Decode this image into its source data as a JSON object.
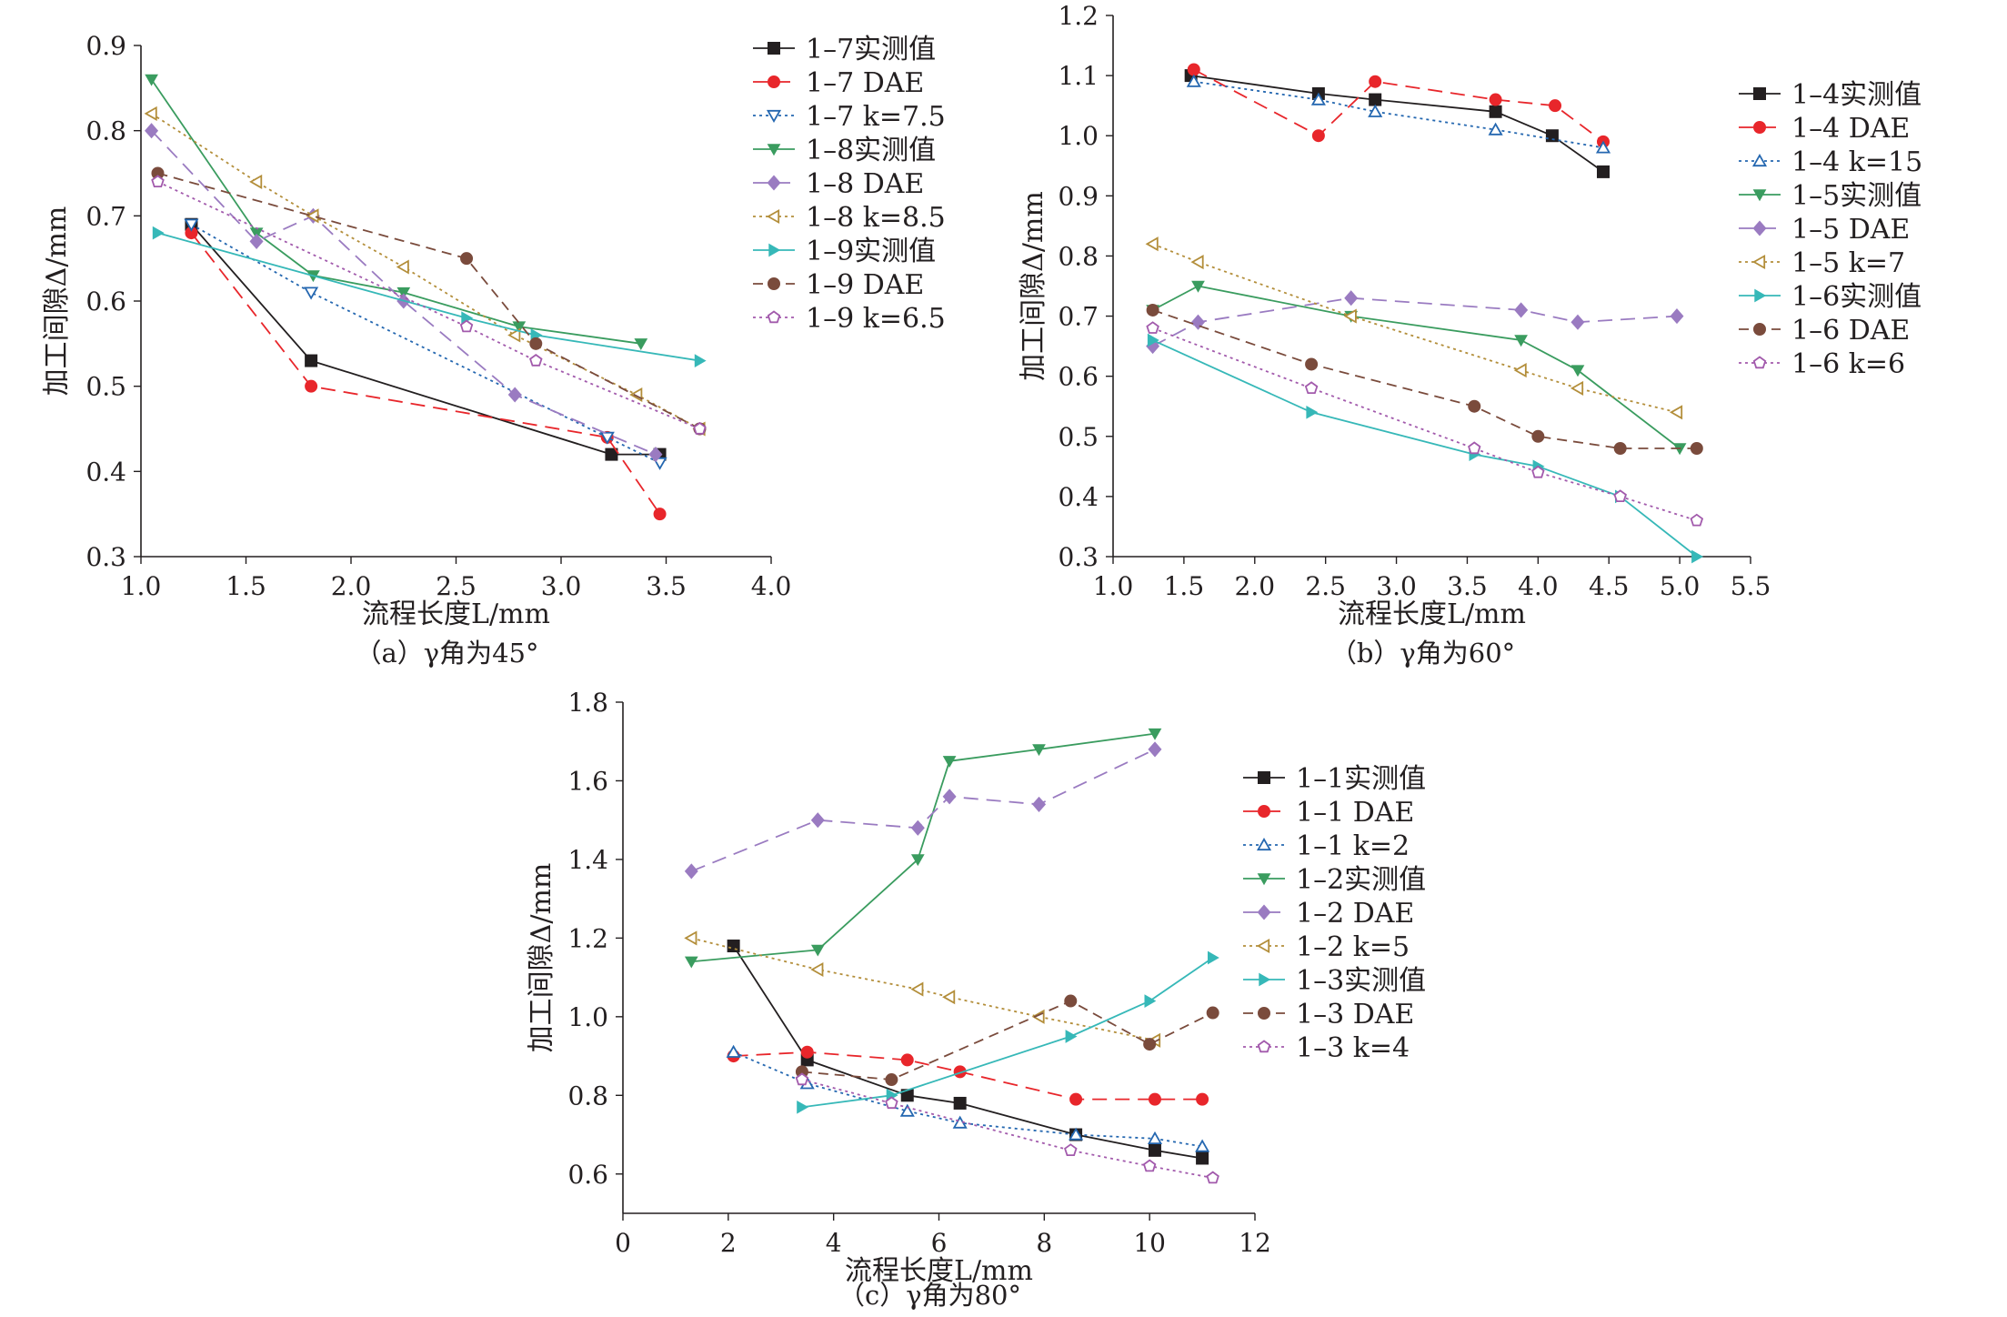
{
  "chart_data": [
    {
      "type": "line",
      "caption": "（a）γ角为45°",
      "xlabel": "流程长度L/mm",
      "ylabel": "加工间隙Δ/mm",
      "xlim": [
        1.0,
        4.0
      ],
      "ylim": [
        0.3,
        0.9
      ],
      "xticks": [
        "1.0",
        "1.5",
        "2.0",
        "2.5",
        "3.0",
        "3.5",
        "4.0"
      ],
      "yticks": [
        "0.3",
        "0.4",
        "0.5",
        "0.6",
        "0.7",
        "0.8",
        "0.9"
      ],
      "grid": false,
      "legend_position": "right",
      "series": [
        {
          "name": "1–7实测值",
          "color": "#231f20",
          "marker": "square",
          "dash": "solid",
          "x": [
            1.24,
            1.81,
            3.24,
            3.47
          ],
          "y": [
            0.69,
            0.53,
            0.42,
            0.42
          ]
        },
        {
          "name": "1–7 DAE",
          "color": "#e8262b",
          "marker": "circle",
          "dash": "long",
          "x": [
            1.24,
            1.81,
            3.22,
            3.47
          ],
          "y": [
            0.68,
            0.5,
            0.44,
            0.35
          ]
        },
        {
          "name": "1–7 k=7.5",
          "color": "#2467b0",
          "marker": "triangle-down-open",
          "dash": "dot",
          "x": [
            1.24,
            1.81,
            3.22,
            3.47
          ],
          "y": [
            0.69,
            0.61,
            0.44,
            0.41
          ]
        },
        {
          "name": "1–8实测值",
          "color": "#3a9c5f",
          "marker": "triangle-down",
          "dash": "solid",
          "x": [
            1.05,
            1.55,
            1.82,
            2.25,
            2.8,
            3.38
          ],
          "y": [
            0.86,
            0.68,
            0.63,
            0.61,
            0.57,
            0.55
          ]
        },
        {
          "name": "1–8 DAE",
          "color": "#9a7bc1",
          "marker": "diamond",
          "dash": "long",
          "x": [
            1.05,
            1.55,
            1.82,
            2.25,
            2.78,
            3.45
          ],
          "y": [
            0.8,
            0.67,
            0.7,
            0.6,
            0.49,
            0.42
          ]
        },
        {
          "name": "1–8 k=8.5",
          "color": "#b38e3a",
          "marker": "triangle-left-open",
          "dash": "dot",
          "x": [
            1.05,
            1.55,
            1.82,
            2.25,
            2.78,
            3.36,
            3.66
          ],
          "y": [
            0.82,
            0.74,
            0.7,
            0.64,
            0.56,
            0.49,
            0.45
          ]
        },
        {
          "name": "1–9实测值",
          "color": "#36b8b8",
          "marker": "triangle-right",
          "dash": "solid",
          "x": [
            1.08,
            2.55,
            2.88,
            3.66
          ],
          "y": [
            0.68,
            0.58,
            0.56,
            0.53
          ]
        },
        {
          "name": "1–9 DAE",
          "color": "#7a4b3c",
          "marker": "circle",
          "dash": "dash",
          "x": [
            1.08,
            2.55,
            2.88,
            3.66
          ],
          "y": [
            0.75,
            0.65,
            0.55,
            0.45
          ]
        },
        {
          "name": "1–9 k=6.5",
          "color": "#a25aac",
          "marker": "pentagon-open",
          "dash": "dot",
          "x": [
            1.08,
            2.55,
            2.88,
            3.66
          ],
          "y": [
            0.74,
            0.57,
            0.53,
            0.45
          ]
        }
      ]
    },
    {
      "type": "line",
      "caption": "（b）γ角为60°",
      "xlabel": "流程长度L/mm",
      "ylabel": "加工间隙Δ/mm",
      "xlim": [
        1.0,
        5.5
      ],
      "ylim": [
        0.3,
        1.2
      ],
      "xticks": [
        "1.0",
        "1.5",
        "2.0",
        "2.5",
        "3.0",
        "3.5",
        "4.0",
        "4.5",
        "5.0",
        "5.5"
      ],
      "yticks": [
        "0.3",
        "0.4",
        "0.5",
        "0.6",
        "0.7",
        "0.8",
        "0.9",
        "1.0",
        "1.1",
        "1.2"
      ],
      "grid": false,
      "legend_position": "right",
      "series": [
        {
          "name": "1–4实测值",
          "color": "#231f20",
          "marker": "square",
          "dash": "solid",
          "x": [
            1.55,
            2.45,
            2.85,
            3.7,
            4.1,
            4.46
          ],
          "y": [
            1.1,
            1.07,
            1.06,
            1.04,
            1.0,
            0.94
          ]
        },
        {
          "name": "1–4 DAE",
          "color": "#e8262b",
          "marker": "circle",
          "dash": "long",
          "x": [
            1.57,
            2.45,
            2.85,
            3.7,
            4.12,
            4.46
          ],
          "y": [
            1.11,
            1.0,
            1.09,
            1.06,
            1.05,
            0.99
          ]
        },
        {
          "name": "1–4 k=15",
          "color": "#2467b0",
          "marker": "triangle-up-open",
          "dash": "dot",
          "x": [
            1.57,
            2.45,
            2.85,
            3.7,
            4.46
          ],
          "y": [
            1.09,
            1.06,
            1.04,
            1.01,
            0.98
          ]
        },
        {
          "name": "1–5实测值",
          "color": "#3a9c5f",
          "marker": "triangle-down",
          "dash": "solid",
          "x": [
            1.28,
            1.6,
            2.68,
            3.88,
            4.28,
            5.0
          ],
          "y": [
            0.71,
            0.75,
            0.7,
            0.66,
            0.61,
            0.48
          ]
        },
        {
          "name": "1–5 DAE",
          "color": "#9a7bc1",
          "marker": "diamond",
          "dash": "long",
          "x": [
            1.28,
            1.6,
            2.68,
            3.88,
            4.28,
            4.98
          ],
          "y": [
            0.65,
            0.69,
            0.73,
            0.71,
            0.69,
            0.7
          ]
        },
        {
          "name": "1–5 k=7",
          "color": "#b38e3a",
          "marker": "triangle-left-open",
          "dash": "dot",
          "x": [
            1.28,
            1.6,
            2.68,
            3.88,
            4.28,
            4.98
          ],
          "y": [
            0.82,
            0.79,
            0.7,
            0.61,
            0.58,
            0.54
          ]
        },
        {
          "name": "1–6实测值",
          "color": "#36b8b8",
          "marker": "triangle-right",
          "dash": "solid",
          "x": [
            1.28,
            2.4,
            3.55,
            4.0,
            4.58,
            5.12
          ],
          "y": [
            0.66,
            0.54,
            0.47,
            0.45,
            0.4,
            0.3
          ]
        },
        {
          "name": "1–6 DAE",
          "color": "#7a4b3c",
          "marker": "circle",
          "dash": "dash",
          "x": [
            1.28,
            2.4,
            3.55,
            4.0,
            4.58,
            5.12
          ],
          "y": [
            0.71,
            0.62,
            0.55,
            0.5,
            0.48,
            0.48
          ]
        },
        {
          "name": "1–6 k=6",
          "color": "#a25aac",
          "marker": "pentagon-open",
          "dash": "dot",
          "x": [
            1.28,
            2.4,
            3.55,
            4.0,
            4.58,
            5.12
          ],
          "y": [
            0.68,
            0.58,
            0.48,
            0.44,
            0.4,
            0.36
          ]
        }
      ]
    },
    {
      "type": "line",
      "caption": "（c）γ角为80°",
      "xlabel": "流程长度L/mm",
      "ylabel": "加工间隙Δ/mm",
      "xlim": [
        0,
        12
      ],
      "ylim": [
        0.5,
        1.8
      ],
      "xticks": [
        "0",
        "2",
        "4",
        "6",
        "8",
        "10",
        "12"
      ],
      "yticks": [
        "0.6",
        "0.8",
        "1.0",
        "1.2",
        "1.4",
        "1.6",
        "1.8"
      ],
      "grid": false,
      "legend_position": "right",
      "series": [
        {
          "name": "1–1实测值",
          "color": "#231f20",
          "marker": "square",
          "dash": "solid",
          "x": [
            2.1,
            3.5,
            5.4,
            6.4,
            8.6,
            10.1,
            11.0
          ],
          "y": [
            1.18,
            0.89,
            0.8,
            0.78,
            0.7,
            0.66,
            0.64
          ]
        },
        {
          "name": "1–1 DAE",
          "color": "#e8262b",
          "marker": "circle",
          "dash": "long",
          "x": [
            2.1,
            3.5,
            5.4,
            6.4,
            8.6,
            10.1,
            11.0
          ],
          "y": [
            0.9,
            0.91,
            0.89,
            0.86,
            0.79,
            0.79,
            0.79
          ]
        },
        {
          "name": "1–1 k=2",
          "color": "#2467b0",
          "marker": "triangle-up-open",
          "dash": "dot",
          "x": [
            2.1,
            3.5,
            5.4,
            6.4,
            8.6,
            10.1,
            11.0
          ],
          "y": [
            0.91,
            0.83,
            0.76,
            0.73,
            0.7,
            0.69,
            0.67
          ]
        },
        {
          "name": "1–2实测值",
          "color": "#3a9c5f",
          "marker": "triangle-down",
          "dash": "solid",
          "x": [
            1.3,
            3.7,
            5.6,
            6.2,
            7.9,
            10.1
          ],
          "y": [
            1.14,
            1.17,
            1.4,
            1.65,
            1.68,
            1.72
          ]
        },
        {
          "name": "1–2 DAE",
          "color": "#9a7bc1",
          "marker": "diamond",
          "dash": "long",
          "x": [
            1.3,
            3.7,
            5.6,
            6.2,
            7.9,
            10.1
          ],
          "y": [
            1.37,
            1.5,
            1.48,
            1.56,
            1.54,
            1.68
          ]
        },
        {
          "name": "1–2 k=5",
          "color": "#b38e3a",
          "marker": "triangle-left-open",
          "dash": "dot",
          "x": [
            1.3,
            3.7,
            5.6,
            6.2,
            7.9,
            10.1
          ],
          "y": [
            1.2,
            1.12,
            1.07,
            1.05,
            1.0,
            0.94
          ]
        },
        {
          "name": "1–3实测值",
          "color": "#36b8b8",
          "marker": "triangle-right",
          "dash": "solid",
          "x": [
            3.4,
            5.1,
            8.5,
            10.0,
            11.2
          ],
          "y": [
            0.77,
            0.8,
            0.95,
            1.04,
            1.15
          ]
        },
        {
          "name": "1–3 DAE",
          "color": "#7a4b3c",
          "marker": "circle",
          "dash": "dash",
          "x": [
            3.4,
            5.1,
            8.5,
            10.0,
            11.2
          ],
          "y": [
            0.86,
            0.84,
            1.04,
            0.93,
            1.01
          ]
        },
        {
          "name": "1–3 k=4",
          "color": "#a25aac",
          "marker": "pentagon-open",
          "dash": "dot",
          "x": [
            3.4,
            5.1,
            8.5,
            10.0,
            11.2
          ],
          "y": [
            0.84,
            0.78,
            0.66,
            0.62,
            0.59
          ]
        }
      ]
    }
  ]
}
